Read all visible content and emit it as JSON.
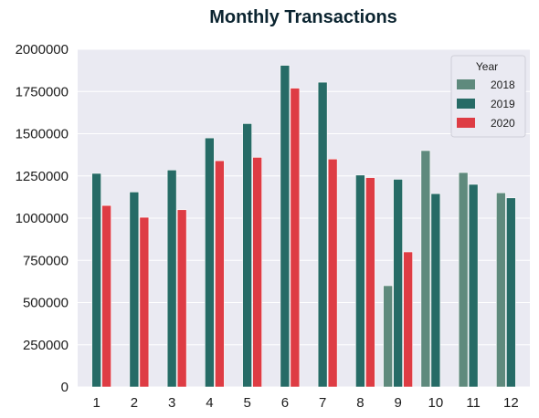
{
  "chart_data": {
    "type": "bar",
    "title": "Monthly Transactions",
    "xlabel": "",
    "ylabel": "",
    "categories": [
      "1",
      "2",
      "3",
      "4",
      "5",
      "6",
      "7",
      "8",
      "9",
      "10",
      "11",
      "12"
    ],
    "ylim": [
      0,
      2000000
    ],
    "yticks": [
      "0",
      "250000",
      "500000",
      "750000",
      "1000000",
      "1250000",
      "1500000",
      "1750000",
      "2000000"
    ],
    "ytick_values": [
      0,
      250000,
      500000,
      750000,
      1000000,
      1250000,
      1500000,
      1750000,
      2000000
    ],
    "grid": true,
    "legend": {
      "title": "Year",
      "placement": "top-right"
    },
    "series": [
      {
        "name": "2018",
        "color": "#5f8a7d",
        "values": [
          null,
          null,
          null,
          null,
          null,
          null,
          null,
          null,
          600000,
          1400000,
          1270000,
          1150000
        ]
      },
      {
        "name": "2019",
        "color": "#266b66",
        "values": [
          1265000,
          1155000,
          1285000,
          1475000,
          1560000,
          1905000,
          1805000,
          1255000,
          1230000,
          1145000,
          1200000,
          1120000
        ]
      },
      {
        "name": "2020",
        "color": "#de3c44",
        "values": [
          1075000,
          1005000,
          1050000,
          1340000,
          1360000,
          1770000,
          1350000,
          1240000,
          800000,
          null,
          null,
          null
        ]
      }
    ]
  },
  "colors": {
    "plot_background": "#eaeaf2",
    "grid": "#ffffff"
  }
}
